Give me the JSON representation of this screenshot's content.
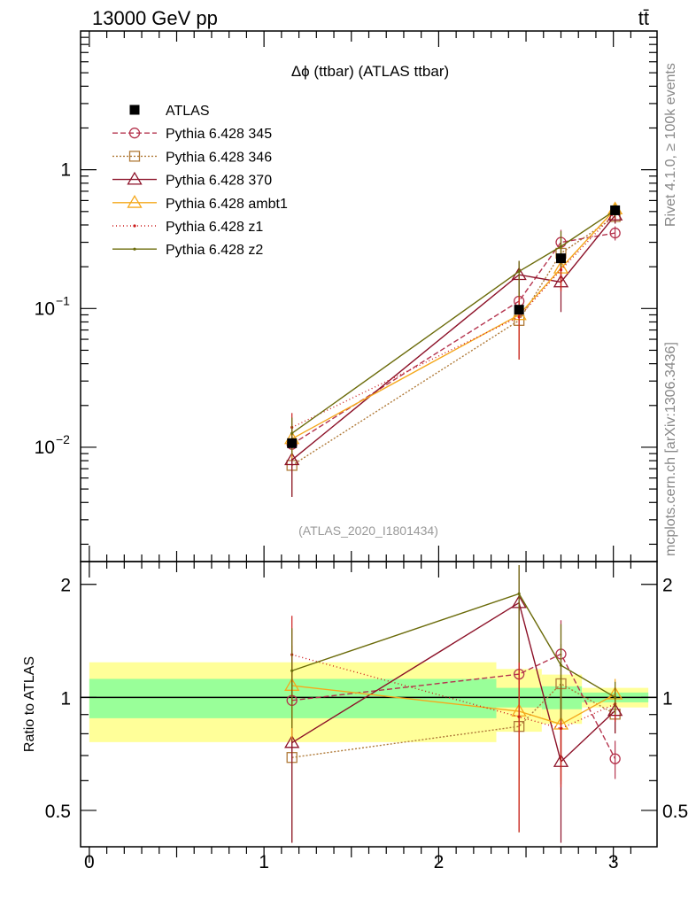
{
  "header": {
    "energy_label": "13000 GeV pp",
    "process_label": "tt̄"
  },
  "side_labels": {
    "rivet": "Rivet 4.1.0, ≥ 100k events",
    "mcplots": "mcplots.cern.ch [arXiv:1306.3436]"
  },
  "chart_data": {
    "type": "line",
    "title": "Δϕ (ttbar) (ATLAS ttbar)",
    "analysis_label": "(ATLAS_2020_I1801434)",
    "xlabel": "",
    "ylabel_main": "",
    "ylabel_ratio": "Ratio to ATLAS",
    "x_range": [
      -0.05,
      3.25
    ],
    "y_range_main": [
      0.0015,
      10
    ],
    "y_scale_main": "log",
    "y_range_ratio": [
      0.4,
      2.3
    ],
    "y_scale_ratio": "log",
    "x_ticks": [
      {
        "value": 0,
        "label": "0"
      },
      {
        "value": 1,
        "label": "1"
      },
      {
        "value": 2,
        "label": "2"
      },
      {
        "value": 3,
        "label": "3"
      }
    ],
    "y_ticks_main": [
      {
        "value": 1,
        "label": "1"
      },
      {
        "value": 0.1,
        "label": "10",
        "exp": "−1"
      },
      {
        "value": 0.01,
        "label": "10",
        "exp": "−2"
      }
    ],
    "y_ticks_ratio": [
      {
        "value": 2,
        "label": "2"
      },
      {
        "value": 1,
        "label": "1"
      },
      {
        "value": 0.5,
        "label": "0.5"
      }
    ],
    "bins": [
      {
        "lo": 0,
        "hi": 2.33
      },
      {
        "lo": 2.33,
        "hi": 2.59
      },
      {
        "lo": 2.59,
        "hi": 2.82
      },
      {
        "lo": 2.82,
        "hi": 3.2
      }
    ],
    "data": {
      "name": "ATLAS",
      "x": [
        1.16,
        2.46,
        2.7,
        3.01
      ],
      "y": [
        0.0107,
        0.098,
        0.23,
        0.51
      ],
      "err_lo": [
        0.0006,
        0.006,
        0.015,
        0.03
      ],
      "err_hi": [
        0.0006,
        0.006,
        0.015,
        0.03
      ],
      "band_inner": [
        0.12,
        0.06,
        0.07,
        0.03
      ],
      "band_outer": [
        0.24,
        0.19,
        0.15,
        0.06
      ]
    },
    "series": [
      {
        "name": "Pythia 6.428 345",
        "color": "#b5344e",
        "dash": "6,3",
        "marker": "circle",
        "x_offset": 0,
        "y": [
          0.0105,
          0.113,
          0.3,
          0.35
        ],
        "ratio_err_lo": [
          0.3,
          0.55,
          0.6,
          0.08
        ],
        "ratio_err_hi": [
          0.3,
          0.6,
          0.3,
          0.08
        ]
      },
      {
        "name": "Pythia 6.428 346",
        "color": "#b07b3a",
        "dash": "2,2",
        "marker": "square",
        "x_offset": 0,
        "y": [
          0.0074,
          0.082,
          0.25,
          0.46
        ],
        "ratio_err_lo": [
          0.3,
          0.4,
          0.5,
          0.1
        ],
        "ratio_err_hi": [
          0.3,
          0.5,
          0.3,
          0.1
        ]
      },
      {
        "name": "Pythia 6.428 370",
        "color": "#8c1128",
        "dash": "",
        "marker": "triangle",
        "x_offset": 0,
        "y": [
          0.0081,
          0.175,
          0.155,
          0.47
        ],
        "ratio_err_lo": [
          0.45,
          0.7,
          0.3,
          0.12
        ],
        "ratio_err_hi": [
          0.45,
          0.65,
          0.4,
          0.12
        ]
      },
      {
        "name": "Pythia 6.428 ambt1",
        "color": "#f5a81c",
        "dash": "",
        "marker": "triangle",
        "x_offset": 0,
        "y": [
          0.0115,
          0.09,
          0.195,
          0.52
        ],
        "ratio_err_lo": [
          0.3,
          0.4,
          0.25,
          0.1
        ],
        "ratio_err_hi": [
          0.3,
          0.4,
          0.3,
          0.1
        ]
      },
      {
        "name": "Pythia 6.428 z1",
        "color": "#cc1a1a",
        "dash": "1,3",
        "marker": "dot",
        "x_offset": 0,
        "y": [
          0.0139,
          0.087,
          0.19,
          0.49
        ],
        "ratio_err_lo": [
          0.35,
          0.45,
          0.25,
          0.1
        ],
        "ratio_err_hi": [
          0.35,
          0.45,
          0.25,
          0.1
        ]
      },
      {
        "name": "Pythia 6.428 z2",
        "color": "#6b6b0a",
        "dash": "",
        "marker": "dot",
        "x_offset": 0,
        "y": [
          0.0126,
          0.185,
          0.28,
          0.51
        ],
        "ratio_err_lo": [
          0.35,
          0.65,
          0.35,
          0.1
        ],
        "ratio_err_hi": [
          0.35,
          0.45,
          0.35,
          0.1
        ]
      }
    ],
    "legend_placement": "top-left"
  }
}
